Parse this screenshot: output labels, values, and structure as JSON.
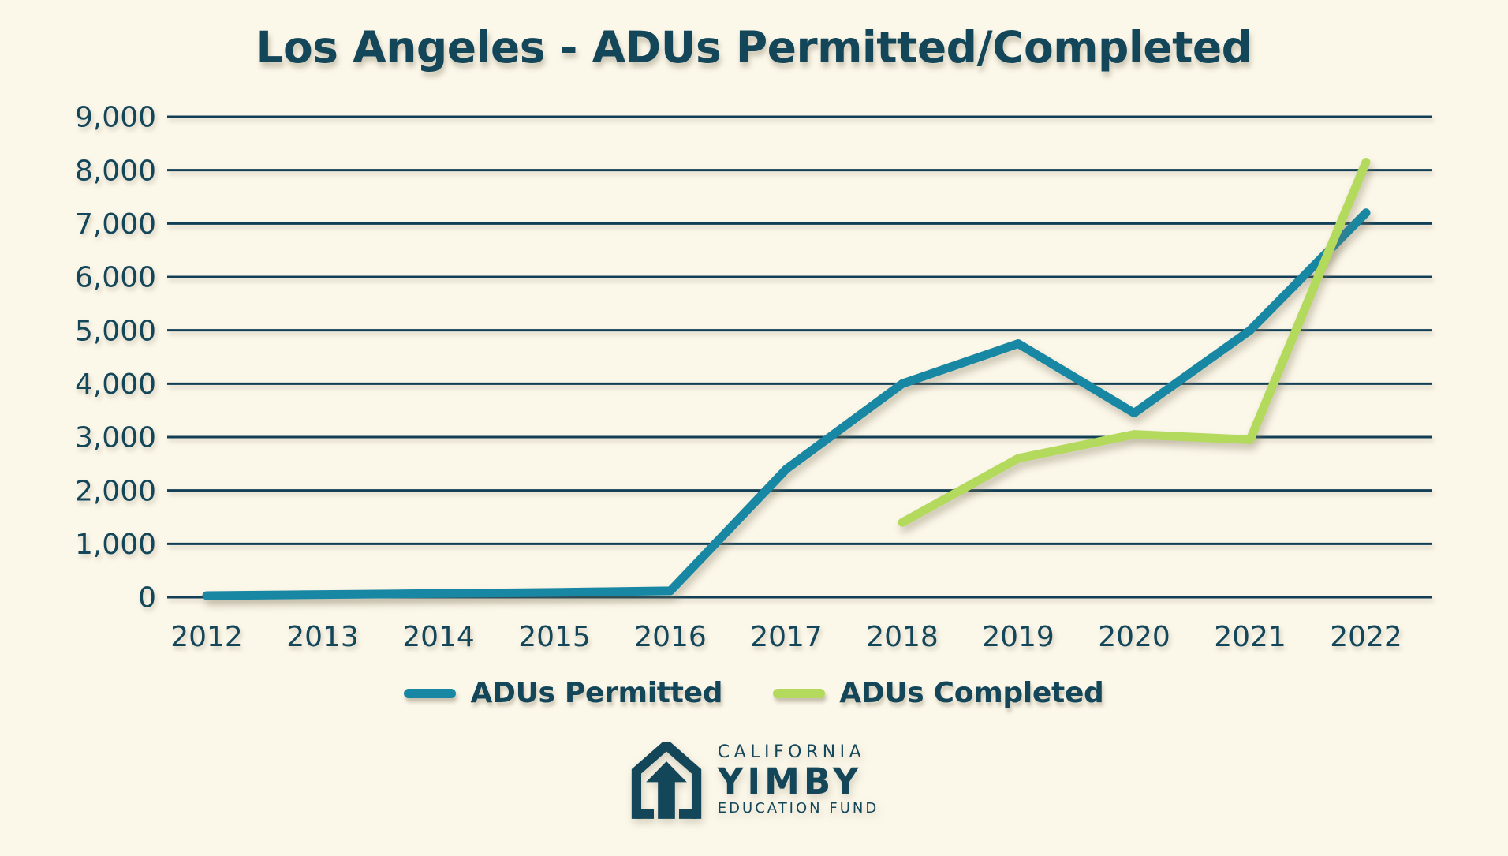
{
  "title": "Los Angeles - ADUs Permitted/Completed",
  "colors": {
    "background": "#FBF7E9",
    "ink": "#14465A",
    "grid": "#123F55",
    "permitted": "#1787A3",
    "completed": "#B4DA5D"
  },
  "chart_data": {
    "type": "line",
    "title": "Los Angeles - ADUs Permitted/Completed",
    "xlabel": "",
    "ylabel": "",
    "x": [
      2012,
      2013,
      2014,
      2015,
      2016,
      2017,
      2018,
      2019,
      2020,
      2021,
      2022
    ],
    "series": [
      {
        "name": "ADUs Permitted",
        "color_key": "permitted",
        "values": [
          30,
          50,
          70,
          90,
          120,
          2400,
          4000,
          4750,
          3450,
          5000,
          7200
        ]
      },
      {
        "name": "ADUs Completed",
        "color_key": "completed",
        "values": [
          null,
          null,
          null,
          null,
          null,
          null,
          1400,
          2600,
          3050,
          2950,
          8150
        ]
      }
    ],
    "ylim": [
      0,
      9000
    ],
    "ytick_step": 1000,
    "grid": true,
    "legend_position": "bottom"
  },
  "logo": {
    "line1": "CALIFORNIA",
    "line2": "YIMBY",
    "line3": "EDUCATION FUND",
    "icon": "house-up-arrow-icon"
  }
}
